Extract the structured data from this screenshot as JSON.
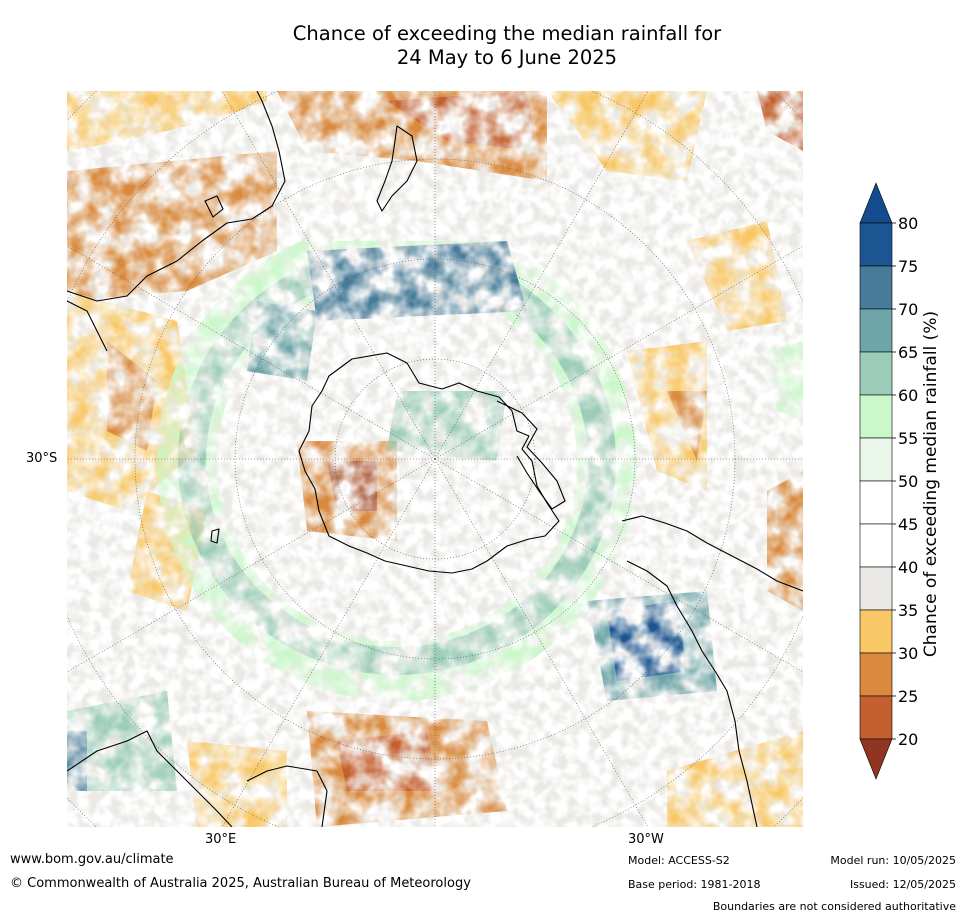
{
  "title_line1": "Chance of exceeding the median rainfall for",
  "title_line2": "24 May to 6 June 2025",
  "map": {
    "lat_label": "30°S",
    "lon_labels": [
      "30°E",
      "30°W"
    ],
    "colors": {
      "ocean_bg": "#ffffff",
      "coast": "#000000"
    }
  },
  "colorbar": {
    "title": "Chance of exceeding median rainfall (%)",
    "ticks": [
      "20",
      "25",
      "30",
      "35",
      "40",
      "45",
      "50",
      "55",
      "60",
      "65",
      "70",
      "75",
      "80"
    ],
    "colors": [
      "#a84a27",
      "#c4602f",
      "#d98a3e",
      "#f8c867",
      "#ebe9e5",
      "#ffffff",
      "#ffffff",
      "#eaf6ea",
      "#cbf8cb",
      "#9ccdb8",
      "#6da5a8",
      "#467b99",
      "#1c5591"
    ],
    "under_color": "#8f3520",
    "over_color": "#134b8c"
  },
  "footer": {
    "website": "www.bom.gov.au/climate",
    "copyright": "© Commonwealth of Australia 2025, Australian Bureau of Meteorology",
    "model": "Model: ACCESS-S2",
    "base_period": "Base period: 1981-2018",
    "model_run": "Model run: 10/05/2025",
    "issued": "Issued: 12/05/2025",
    "boundaries": "Boundaries are not considered authoritative"
  }
}
